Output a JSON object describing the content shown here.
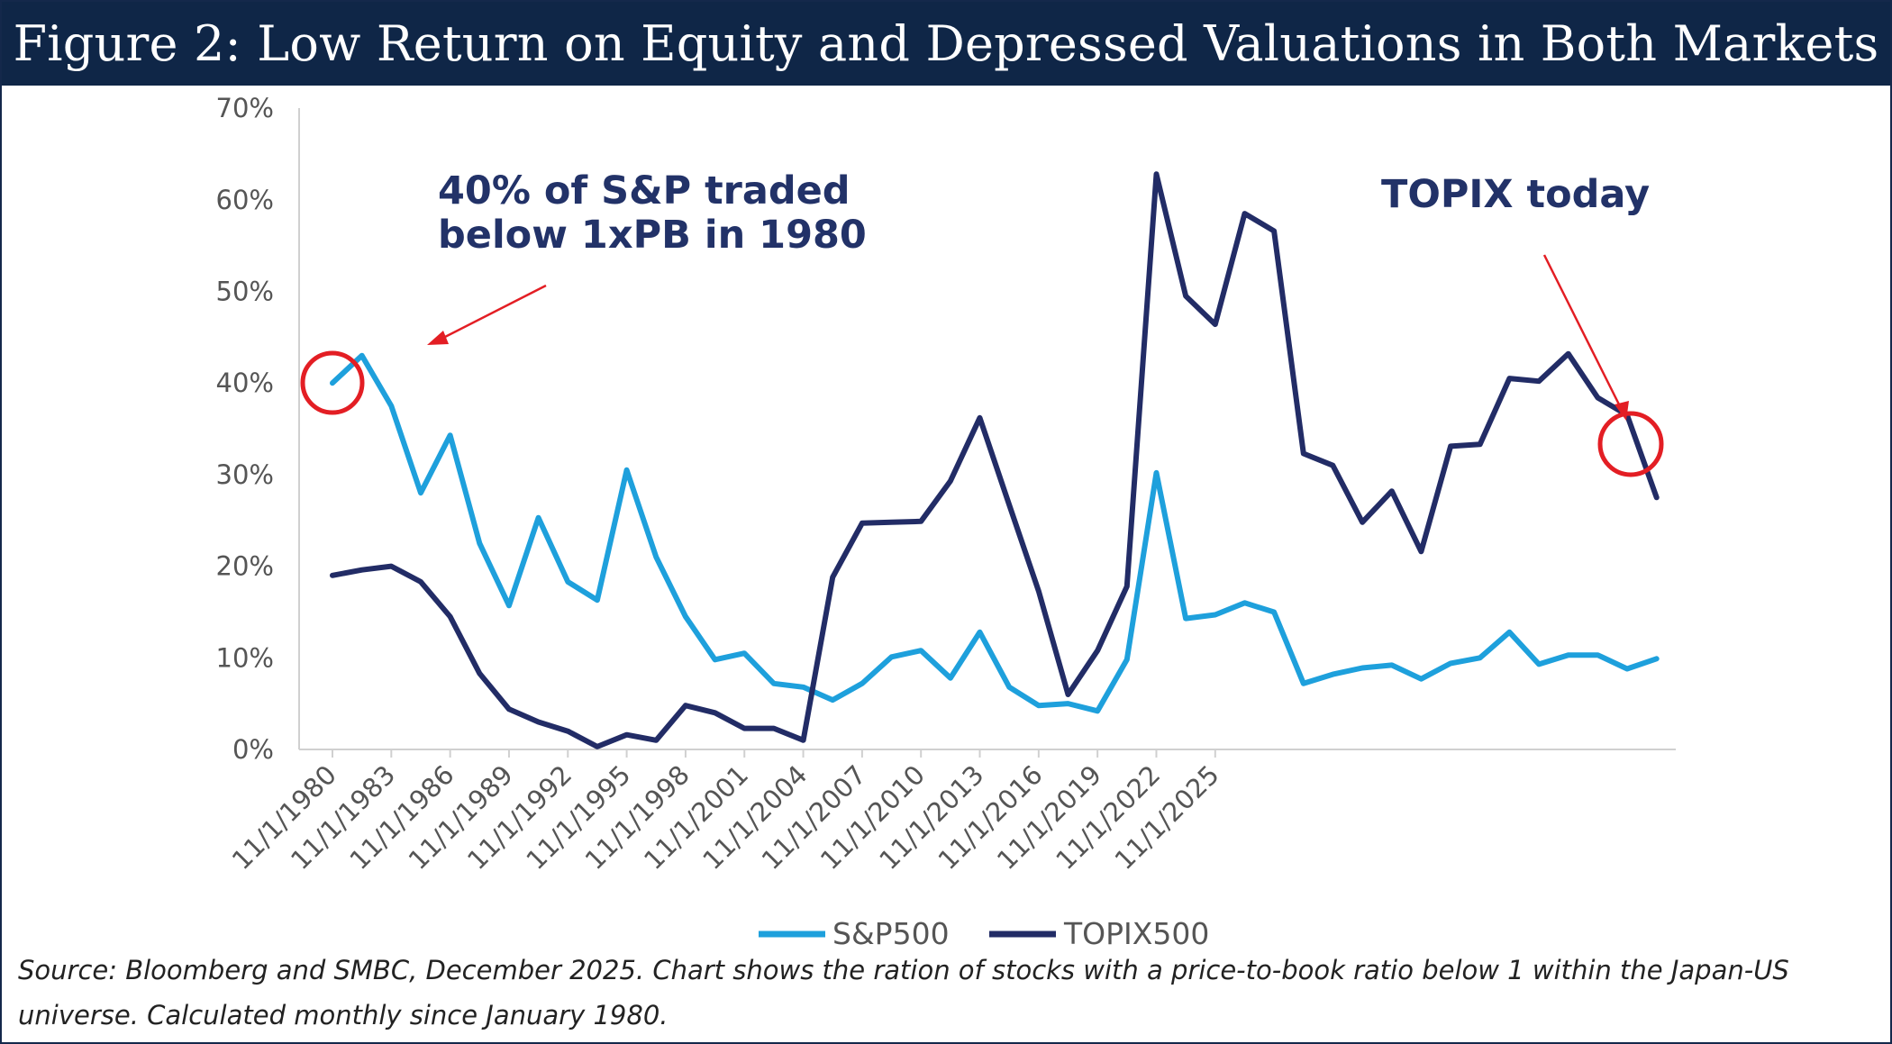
{
  "title": "Figure 2: Low Return on Equity and Depressed Valuations in Both Markets",
  "source_note": "Source: Bloomberg and SMBC, December 2025. Chart shows the ration of stocks with a price-to-book ratio below 1 within the Japan-US universe. Calculated monthly since January 1980.",
  "annotations": {
    "sp_line1": "40% of S&P traded",
    "sp_line2": "below 1xPB in 1980",
    "topix": "TOPIX today"
  },
  "colors": {
    "sp500": "#1ea0dc",
    "topix500": "#222c66",
    "annotation_red": "#e31e24",
    "title_bg": "#0f2647"
  },
  "chart_data": {
    "type": "line",
    "x_start_year": 1980,
    "x_step_years": 1.5,
    "x_tick_labels": [
      "11/1/1980",
      "11/1/1983",
      "11/1/1986",
      "11/1/1989",
      "11/1/1992",
      "11/1/1995",
      "11/1/1998",
      "11/1/2001",
      "11/1/2004",
      "11/1/2007",
      "11/1/2010",
      "11/1/2013",
      "11/1/2016",
      "11/1/2019",
      "11/1/2022",
      "11/1/2025"
    ],
    "y_tick_labels": [
      "0%",
      "10%",
      "20%",
      "30%",
      "40%",
      "50%",
      "60%",
      "70%"
    ],
    "ylim": [
      0,
      70
    ],
    "y_unit": "%",
    "grid": false,
    "legend_position": "bottom",
    "series": [
      {
        "name": "S&P500",
        "values": [
          40,
          43,
          37.5,
          28,
          34.3,
          22.5,
          15.7,
          25.3,
          18.3,
          16.3,
          30.5,
          21,
          14.5,
          9.8,
          10.5,
          7.2,
          6.8,
          5.4,
          7.2,
          10.1,
          10.8,
          7.8,
          12.8,
          6.8,
          4.8,
          5,
          4.2,
          9.8,
          30.2,
          14.3,
          14.7,
          16,
          15,
          7.2,
          8.2,
          8.9,
          9.2,
          7.7,
          9.4,
          10,
          12.8,
          9.3,
          10.3,
          10.3,
          8.8,
          9.9
        ]
      },
      {
        "name": "TOPIX500",
        "values": [
          19,
          19.6,
          20,
          18.3,
          14.5,
          8.3,
          4.4,
          3,
          2,
          0.3,
          1.6,
          1,
          4.8,
          4,
          2.3,
          2.3,
          1,
          18.8,
          24.7,
          24.8,
          24.9,
          29.3,
          36.2,
          26.7,
          17.3,
          6,
          10.8,
          17.8,
          62.8,
          49.5,
          46.4,
          58.5,
          56.6,
          32.3,
          31,
          24.8,
          28.2,
          21.6,
          33.1,
          33.3,
          40.5,
          40.2,
          43.2,
          38.4,
          36.5,
          27.5
        ]
      }
    ]
  }
}
